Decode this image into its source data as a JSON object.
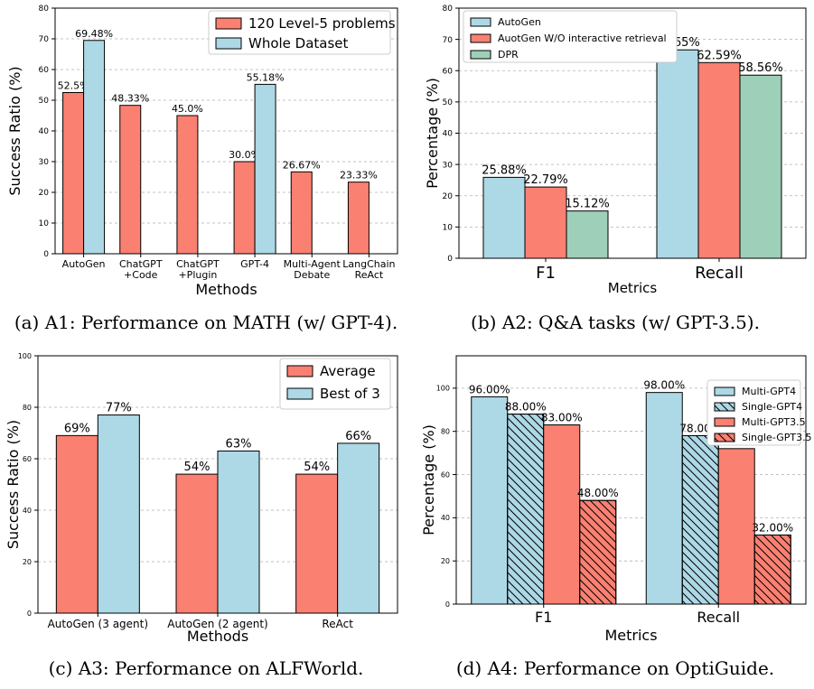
{
  "captions": [
    "(a) A1: Performance on MATH (w/ GPT-4).",
    "(b) A2: Q&A tasks (w/ GPT-3.5).",
    "(c) A3: Performance on ALFWorld.",
    "(d) A4: Performance on OptiGuide."
  ],
  "colors": {
    "salmon": "#fa8072",
    "lightblue": "#add8e6",
    "green": "#9ecfb8",
    "grid": "#b0b0b0"
  },
  "chart_data": [
    {
      "type": "bar",
      "xlabel": "Methods",
      "ylabel": "Success Ratio (%)",
      "ylim": [
        0,
        80
      ],
      "yticks": [
        "0",
        "10",
        "20",
        "30",
        "40",
        "50",
        "60",
        "70",
        "80"
      ],
      "categories": [
        [
          "AutoGen"
        ],
        [
          "ChatGPT",
          "+Code"
        ],
        [
          "ChatGPT",
          "+Plugin"
        ],
        [
          "GPT-4"
        ],
        [
          "Multi-Agent",
          "Debate"
        ],
        [
          "LangChain",
          "ReAct"
        ]
      ],
      "legend_position": "top-right",
      "grid": true,
      "series": [
        {
          "name": "120 Level-5 problems",
          "color": "#fa8072",
          "hatch": false,
          "values": [
            52.5,
            48.33,
            45.0,
            30.0,
            26.67,
            23.33
          ],
          "labels": [
            "52.5%",
            "48.33%",
            "45.0%",
            "30.0%",
            "26.67%",
            "23.33%"
          ]
        },
        {
          "name": "Whole Dataset",
          "color": "#add8e6",
          "hatch": false,
          "values": [
            69.48,
            null,
            null,
            55.18,
            null,
            null
          ],
          "labels": [
            "69.48%",
            "",
            "",
            "55.18%",
            "",
            ""
          ]
        }
      ]
    },
    {
      "type": "bar",
      "xlabel": "Metrics",
      "ylabel": "Percentage (%)",
      "ylim": [
        0,
        80
      ],
      "yticks": [
        "0",
        "10",
        "20",
        "30",
        "40",
        "50",
        "60",
        "70",
        "80"
      ],
      "categories": [
        [
          "F1"
        ],
        [
          "Recall"
        ]
      ],
      "legend_position": "top-left",
      "grid": true,
      "series": [
        {
          "name": "AutoGen",
          "color": "#add8e6",
          "hatch": false,
          "values": [
            25.88,
            66.65
          ],
          "labels": [
            "25.88%",
            "66.65%"
          ]
        },
        {
          "name": "AuotGen W/O interactive retrieval",
          "color": "#fa8072",
          "hatch": false,
          "values": [
            22.79,
            62.59
          ],
          "labels": [
            "22.79%",
            "62.59%"
          ]
        },
        {
          "name": "DPR",
          "color": "#9ecfb8",
          "hatch": false,
          "values": [
            15.12,
            58.56
          ],
          "labels": [
            "15.12%",
            "58.56%"
          ]
        }
      ]
    },
    {
      "type": "bar",
      "xlabel": "Methods",
      "ylabel": "Success Ratio (%)",
      "ylim": [
        0,
        100
      ],
      "yticks": [
        "0",
        "20",
        "40",
        "60",
        "80",
        "100"
      ],
      "categories": [
        [
          "AutoGen (3 agent)"
        ],
        [
          "AutoGen (2 agent)"
        ],
        [
          "ReAct"
        ]
      ],
      "legend_position": "top-right",
      "grid": true,
      "series": [
        {
          "name": "Average",
          "color": "#fa8072",
          "hatch": false,
          "values": [
            69,
            54,
            54
          ],
          "labels": [
            "69%",
            "54%",
            "54%"
          ]
        },
        {
          "name": "Best of 3",
          "color": "#add8e6",
          "hatch": false,
          "values": [
            77,
            63,
            66
          ],
          "labels": [
            "77%",
            "63%",
            "66%"
          ]
        }
      ]
    },
    {
      "type": "bar",
      "xlabel": "Metrics",
      "ylabel": "Percentage (%)",
      "ylim": [
        0,
        115
      ],
      "yticks": [
        "0",
        "20",
        "40",
        "60",
        "80",
        "100"
      ],
      "categories": [
        [
          "F1"
        ],
        [
          "Recall"
        ]
      ],
      "legend_position": "top-right",
      "grid": true,
      "series": [
        {
          "name": "Multi-GPT4",
          "color": "#add8e6",
          "hatch": false,
          "values": [
            96,
            98
          ],
          "labels": [
            "96.00%",
            "98.00%"
          ]
        },
        {
          "name": "Single-GPT4",
          "color": "#add8e6",
          "hatch": true,
          "values": [
            88,
            78
          ],
          "labels": [
            "88.00%",
            "78.00%"
          ]
        },
        {
          "name": "Multi-GPT3.5",
          "color": "#fa8072",
          "hatch": false,
          "values": [
            83,
            72
          ],
          "labels": [
            "83.00%",
            "72.00%"
          ]
        },
        {
          "name": "Single-GPT3.5",
          "color": "#fa8072",
          "hatch": true,
          "values": [
            48,
            32
          ],
          "labels": [
            "48.00%",
            "32.00%"
          ]
        }
      ]
    }
  ]
}
